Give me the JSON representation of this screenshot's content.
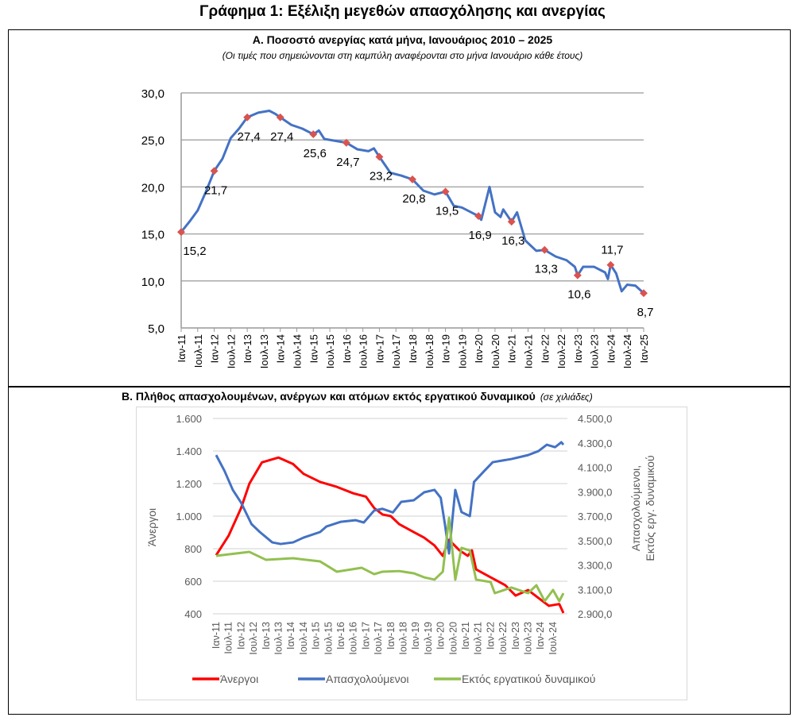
{
  "title": "Γράφημα 1: Εξέλιξη μεγεθών απασχόλησης και ανεργίας",
  "chart_data": [
    {
      "type": "line",
      "title": "Α. Ποσοστό ανεργίας κατά μήνα, Ιανουάριος 2010 – 2025",
      "subtitle": "(Οι τιμές που σημειώνονται στη καμπύλη αναφέρονται στο μήνα Ιανουάριο κάθε έτους)",
      "xlabel": "",
      "ylabel": "",
      "ylim": [
        5,
        30
      ],
      "yticks": [
        "5,0",
        "10,0",
        "15,0",
        "20,0",
        "25,0",
        "30,0"
      ],
      "ytick_values": [
        5,
        10,
        15,
        20,
        25,
        30
      ],
      "xticks": [
        "Ιαν-11",
        "Ιουλ-11",
        "Ιαν-12",
        "Ιουλ-12",
        "Ιαν-13",
        "Ιουλ-13",
        "Ιαν-14",
        "Ιουλ-14",
        "Ιαν-15",
        "Ιουλ-15",
        "Ιαν-16",
        "Ιουλ-16",
        "Ιαν-17",
        "Ιουλ-17",
        "Ιαν-18",
        "Ιουλ-18",
        "Ιαν-19",
        "Ιουλ-19",
        "Ιαν-20",
        "Ιουλ-20",
        "Ιαν-21",
        "Ιουλ-21",
        "Ιαν-22",
        "Ιουλ-22",
        "Ιαν-23",
        "Ιουλ-23",
        "Ιαν-24",
        "Ιουλ-24",
        "Ιαν-25"
      ],
      "x_unit": "months since Jan 2011",
      "xlim": [
        0,
        168
      ],
      "grid": true,
      "series": [
        {
          "name": "Ποσοστό ανεργίας",
          "color": "#4472c4",
          "points": [
            [
              0,
              15.2
            ],
            [
              3,
              16.3
            ],
            [
              6,
              17.5
            ],
            [
              9,
              19.5
            ],
            [
              12,
              21.7
            ],
            [
              15,
              23.0
            ],
            [
              18,
              25.2
            ],
            [
              21,
              26.2
            ],
            [
              24,
              27.4
            ],
            [
              28,
              27.9
            ],
            [
              32,
              28.1
            ],
            [
              34,
              27.8
            ],
            [
              36,
              27.4
            ],
            [
              40,
              26.6
            ],
            [
              44,
              26.2
            ],
            [
              48,
              25.6
            ],
            [
              50,
              26.0
            ],
            [
              52,
              25.1
            ],
            [
              56,
              24.9
            ],
            [
              60,
              24.7
            ],
            [
              64,
              24.0
            ],
            [
              68,
              23.8
            ],
            [
              70,
              24.1
            ],
            [
              72,
              23.2
            ],
            [
              76,
              21.5
            ],
            [
              80,
              21.2
            ],
            [
              84,
              20.8
            ],
            [
              88,
              19.6
            ],
            [
              92,
              19.2
            ],
            [
              96,
              19.5
            ],
            [
              99,
              18.0
            ],
            [
              102,
              17.8
            ],
            [
              106,
              17.2
            ],
            [
              108,
              16.9
            ],
            [
              109,
              16.5
            ],
            [
              112,
              20.0
            ],
            [
              114,
              17.3
            ],
            [
              116,
              16.8
            ],
            [
              117,
              17.6
            ],
            [
              120,
              16.3
            ],
            [
              122,
              17.3
            ],
            [
              125,
              14.3
            ],
            [
              129,
              13.2
            ],
            [
              132,
              13.3
            ],
            [
              136,
              12.6
            ],
            [
              140,
              12.2
            ],
            [
              143,
              11.5
            ],
            [
              144,
              10.6
            ],
            [
              146,
              11.5
            ],
            [
              150,
              11.5
            ],
            [
              154,
              10.9
            ],
            [
              155,
              10.2
            ],
            [
              156,
              11.7
            ],
            [
              158,
              10.8
            ],
            [
              160,
              8.9
            ],
            [
              162,
              9.6
            ],
            [
              165,
              9.5
            ],
            [
              168,
              8.7
            ]
          ]
        }
      ],
      "markers": {
        "color": "#d9534f",
        "points": [
          [
            0,
            15.2
          ],
          [
            12,
            21.7
          ],
          [
            24,
            27.4
          ],
          [
            36,
            27.4
          ],
          [
            48,
            25.6
          ],
          [
            60,
            24.7
          ],
          [
            72,
            23.2
          ],
          [
            84,
            20.8
          ],
          [
            96,
            19.5
          ],
          [
            108,
            16.9
          ],
          [
            120,
            16.3
          ],
          [
            132,
            13.3
          ],
          [
            144,
            10.6
          ],
          [
            156,
            11.7
          ],
          [
            168,
            8.7
          ]
        ],
        "labels": [
          "15,2",
          "21,7",
          "27,4",
          "27,4",
          "25,6",
          "24,7",
          "23,2",
          "20,8",
          "19,5",
          "16,9",
          "16,3",
          "13,3",
          "10,6",
          "11,7",
          "8,7"
        ]
      }
    },
    {
      "type": "line",
      "title": "Β. Πλήθος απασχολουμένων, ανέργων και ατόμων εκτός εργατικού δυναμικού",
      "unit_note": "(σε χιλιάδες)",
      "ylabel_left": "Άνεργοι",
      "ylabel_right": [
        "Απασχολούμενοι,",
        "Εκτός εργ. δυναμικού"
      ],
      "ylim_left": [
        400,
        1600
      ],
      "ylim_right": [
        2900,
        4500
      ],
      "yticks_left": [
        "400",
        "600",
        "800",
        "1.000",
        "1.200",
        "1.400",
        "1.600"
      ],
      "ytick_values_left": [
        400,
        600,
        800,
        1000,
        1200,
        1400,
        1600
      ],
      "yticks_right": [
        "2.900,0",
        "3.100,0",
        "3.300,0",
        "3.500,0",
        "3.700,0",
        "3.900,0",
        "4.100,0",
        "4.300,0",
        "4.500,0"
      ],
      "ytick_values_right": [
        2900,
        3100,
        3300,
        3500,
        3700,
        3900,
        4100,
        4300,
        4500
      ],
      "xticks": [
        "Ιαν-11",
        "Ιουλ-11",
        "Ιαν-12",
        "Ιουλ-12",
        "Ιαν-13",
        "Ιουλ-13",
        "Ιαν-14",
        "Ιουλ-14",
        "Ιαν-15",
        "Ιουλ-15",
        "Ιαν-16",
        "Ιουλ-16",
        "Ιαν-17",
        "Ιουλ-17",
        "Ιαν-18",
        "Ιουλ-18",
        "Ιαν-19",
        "Ιουλ-19",
        "Ιαν-20",
        "Ιουλ-20",
        "Ιαν-21",
        "Ιουλ-21",
        "Ιαν-22",
        "Ιουλ-22",
        "Ιαν-23",
        "Ιουλ-23",
        "Ιαν-24",
        "Ιουλ-24"
      ],
      "x_unit": "months since Jan 2011",
      "xlim": [
        0,
        167
      ],
      "grid": true,
      "legend_position": "bottom",
      "series": [
        {
          "name": "Άνεργοι",
          "axis": "left",
          "color": "#ff0000",
          "points": [
            [
              0,
              760
            ],
            [
              6,
              880
            ],
            [
              12,
              1050
            ],
            [
              16,
              1200
            ],
            [
              22,
              1330
            ],
            [
              30,
              1360
            ],
            [
              37,
              1320
            ],
            [
              42,
              1260
            ],
            [
              50,
              1210
            ],
            [
              58,
              1180
            ],
            [
              66,
              1140
            ],
            [
              72,
              1120
            ],
            [
              76,
              1050
            ],
            [
              80,
              1010
            ],
            [
              84,
              1000
            ],
            [
              88,
              951
            ],
            [
              95,
              902
            ],
            [
              100,
              868
            ],
            [
              105,
              820
            ],
            [
              109,
              756
            ],
            [
              112,
              854
            ],
            [
              117,
              790
            ],
            [
              121,
              756
            ],
            [
              123,
              790
            ],
            [
              125,
              673
            ],
            [
              132,
              624
            ],
            [
              139,
              576
            ],
            [
              144,
              512
            ],
            [
              150,
              546
            ],
            [
              155,
              497
            ],
            [
              160,
              449
            ],
            [
              165,
              460
            ],
            [
              167,
              405
            ]
          ]
        },
        {
          "name": "Απασχολούμενοι",
          "axis": "right",
          "color": "#4472c4",
          "points": [
            [
              0,
              4200
            ],
            [
              4,
              4071
            ],
            [
              8,
              3915
            ],
            [
              12,
              3810
            ],
            [
              17,
              3635
            ],
            [
              21,
              3570
            ],
            [
              27,
              3485
            ],
            [
              31,
              3472
            ],
            [
              37,
              3485
            ],
            [
              42,
              3524
            ],
            [
              50,
              3570
            ],
            [
              53,
              3615
            ],
            [
              60,
              3654
            ],
            [
              67,
              3667
            ],
            [
              71,
              3648
            ],
            [
              76,
              3746
            ],
            [
              80,
              3760
            ],
            [
              85,
              3730
            ],
            [
              89,
              3817
            ],
            [
              95,
              3830
            ],
            [
              100,
              3895
            ],
            [
              105,
              3915
            ],
            [
              108,
              3850
            ],
            [
              110,
              3635
            ],
            [
              112,
              3394
            ],
            [
              115,
              3915
            ],
            [
              118,
              3733
            ],
            [
              122,
              3700
            ],
            [
              124,
              3980
            ],
            [
              129,
              4071
            ],
            [
              133,
              4142
            ],
            [
              142,
              4168
            ],
            [
              150,
              4200
            ],
            [
              155,
              4233
            ],
            [
              159,
              4285
            ],
            [
              163,
              4265
            ],
            [
              166,
              4305
            ],
            [
              167,
              4285
            ]
          ]
        },
        {
          "name": "Εκτός εργατικού δυναμικού",
          "axis": "right",
          "color": "#92c050",
          "points": [
            [
              0,
              3375
            ],
            [
              16,
              3407
            ],
            [
              24,
              3342
            ],
            [
              37,
              3355
            ],
            [
              50,
              3329
            ],
            [
              58,
              3245
            ],
            [
              70,
              3277
            ],
            [
              76,
              3225
            ],
            [
              80,
              3245
            ],
            [
              88,
              3250
            ],
            [
              95,
              3232
            ],
            [
              100,
              3199
            ],
            [
              105,
              3180
            ],
            [
              109,
              3245
            ],
            [
              112,
              3687
            ],
            [
              115,
              3180
            ],
            [
              118,
              3440
            ],
            [
              122,
              3418
            ],
            [
              125,
              3180
            ],
            [
              132,
              3160
            ],
            [
              134,
              3069
            ],
            [
              142,
              3115
            ],
            [
              150,
              3069
            ],
            [
              154,
              3134
            ],
            [
              158,
              3004
            ],
            [
              162,
              3095
            ],
            [
              165,
              3004
            ],
            [
              167,
              3069
            ]
          ]
        }
      ]
    }
  ]
}
